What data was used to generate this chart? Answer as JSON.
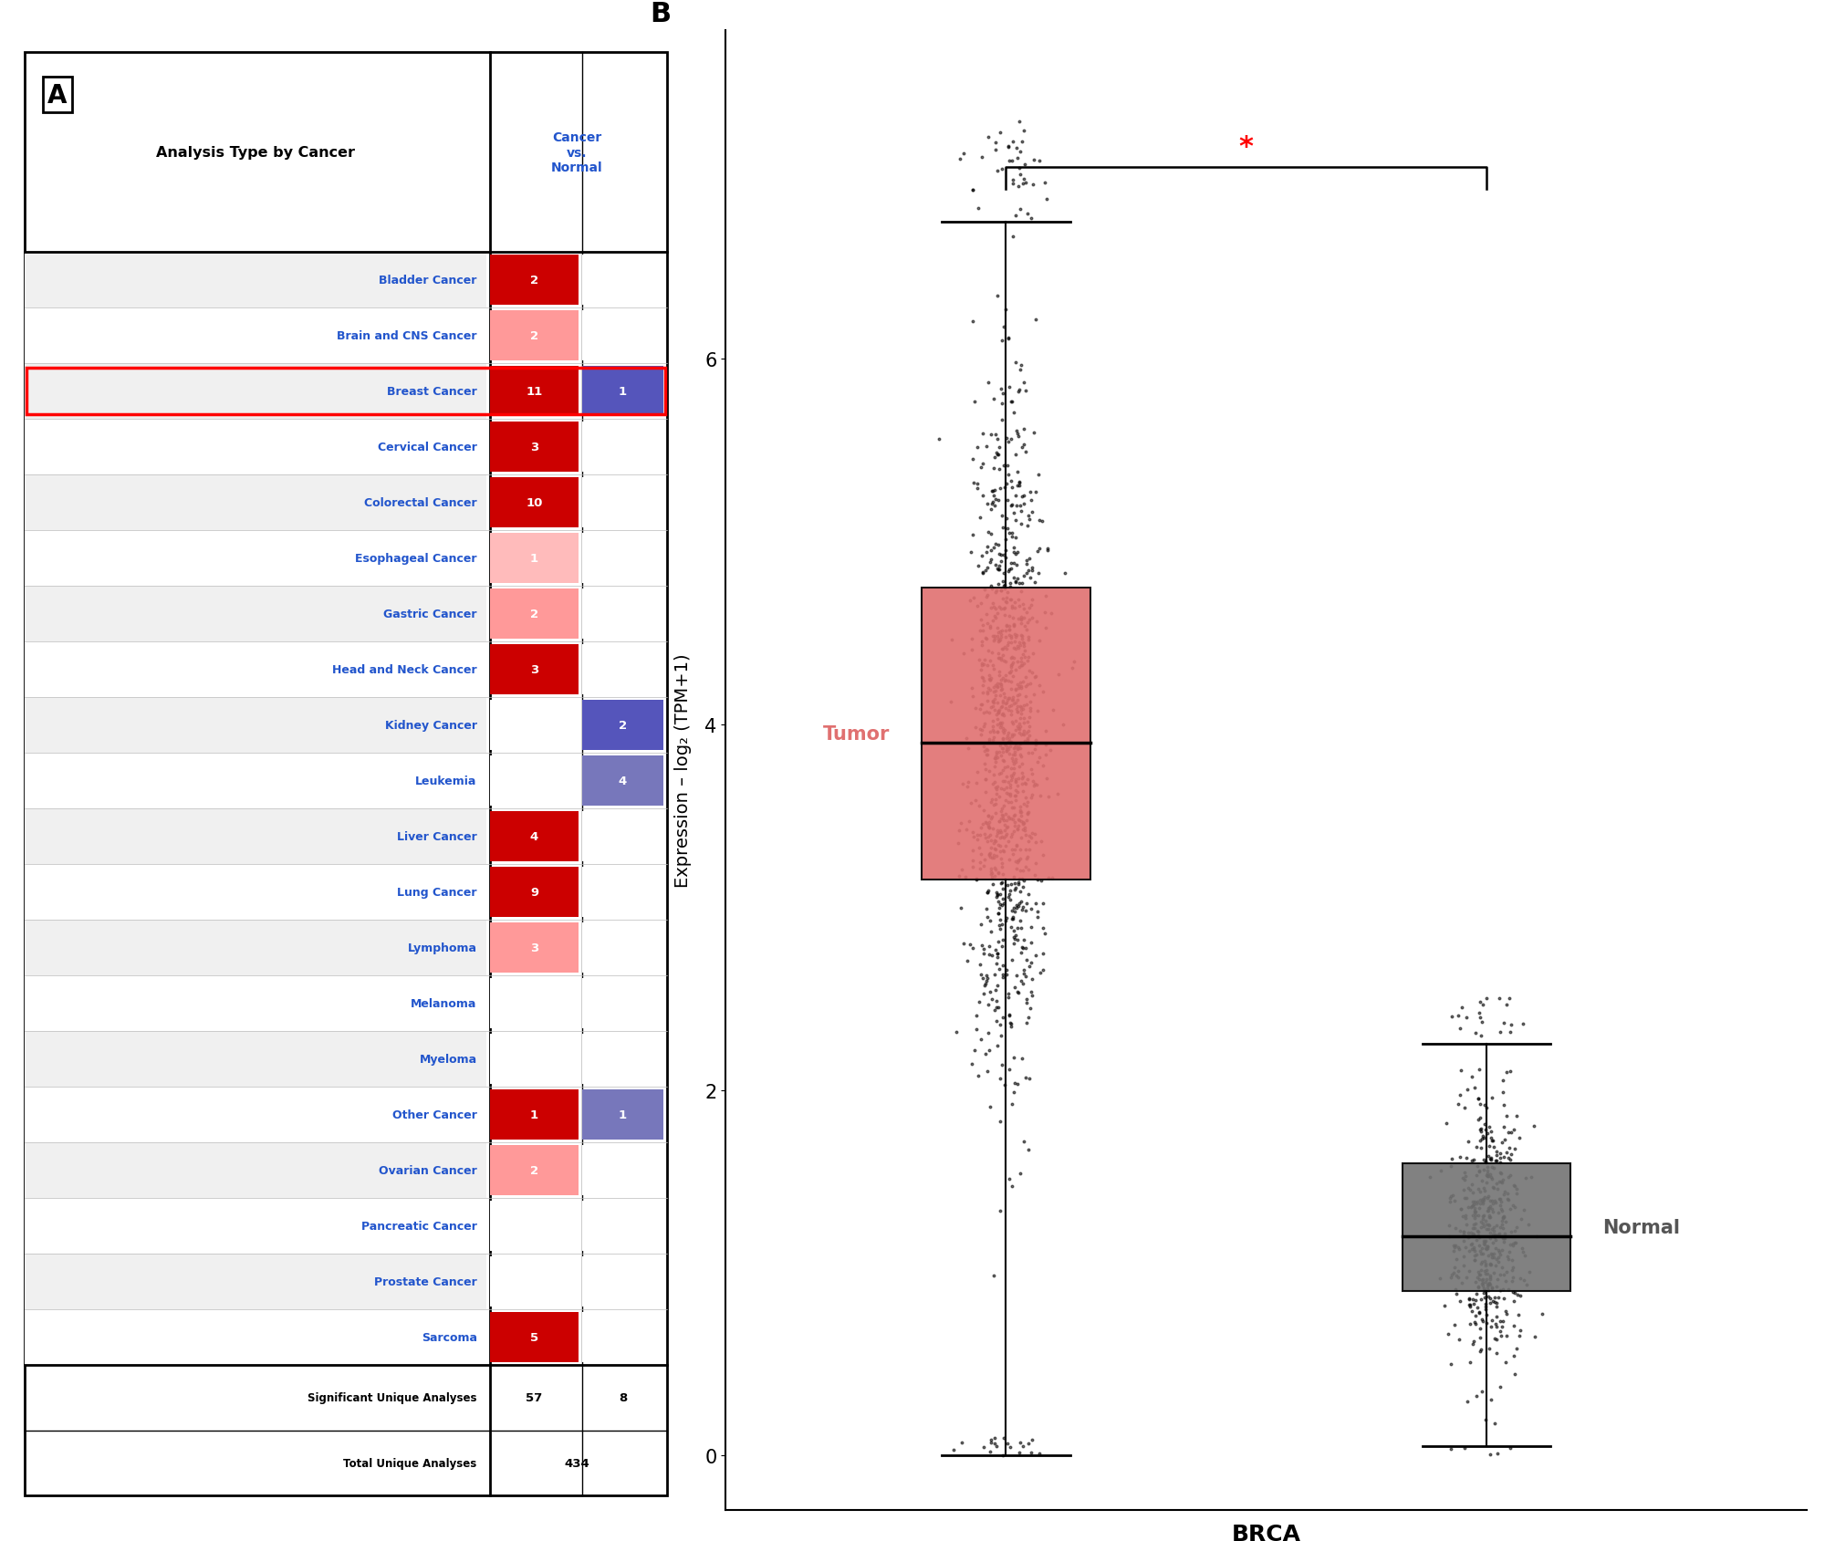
{
  "panel_a": {
    "title": "A",
    "col_header_left": "Analysis Type by Cancer",
    "col_header_right": "Cancer\nvs.\nNormal",
    "cancer_types": [
      "Bladder Cancer",
      "Brain and CNS Cancer",
      "Breast Cancer",
      "Cervical Cancer",
      "Colorectal Cancer",
      "Esophageal Cancer",
      "Gastric Cancer",
      "Head and Neck Cancer",
      "Kidney Cancer",
      "Leukemia",
      "Liver Cancer",
      "Lung Cancer",
      "Lymphoma",
      "Melanoma",
      "Myeloma",
      "Other Cancer",
      "Ovarian Cancer",
      "Pancreatic Cancer",
      "Prostate Cancer",
      "Sarcoma"
    ],
    "red_values": [
      2,
      2,
      11,
      3,
      10,
      1,
      2,
      3,
      null,
      null,
      4,
      9,
      3,
      null,
      null,
      1,
      2,
      null,
      null,
      5
    ],
    "blue_values": [
      null,
      null,
      1,
      null,
      null,
      null,
      null,
      null,
      2,
      4,
      null,
      null,
      null,
      null,
      null,
      1,
      null,
      null,
      null,
      null
    ],
    "highlighted_row": 2,
    "sig_unique_red": 57,
    "sig_unique_blue": 8,
    "total_unique": 434,
    "red_colors": [
      "#CC0000",
      "#FF9999",
      "#CC0000",
      "#CC0000",
      "#CC0000",
      "#FFBBBB",
      "#FF9999",
      "#CC0000",
      null,
      null,
      "#CC0000",
      "#CC0000",
      "#FF9999",
      null,
      null,
      "#CC0000",
      "#FF9999",
      null,
      null,
      "#CC0000"
    ],
    "blue_colors": [
      null,
      null,
      "#5555BB",
      null,
      null,
      null,
      null,
      null,
      "#5555BB",
      "#7777BB",
      null,
      null,
      null,
      null,
      null,
      "#7777BB",
      null,
      null,
      null,
      null
    ]
  },
  "panel_b": {
    "title": "B",
    "xlabel": "BRCA",
    "ylabel": "Expression – log₂ (TPM+1)",
    "tumor_label": "Tumor",
    "normal_label": "Normal",
    "tumor_color": "#E07070",
    "normal_color": "#737373",
    "tumor_box": {
      "median": 3.9,
      "q1": 3.15,
      "q3": 4.75,
      "whisker_low": 0.0,
      "whisker_high": 6.75
    },
    "normal_box": {
      "median": 1.2,
      "q1": 0.9,
      "q3": 1.6,
      "whisker_low": 0.05,
      "whisker_high": 2.25
    },
    "significance_marker": "*",
    "sig_color": "red",
    "yticks": [
      0,
      2,
      4,
      6
    ],
    "ylim": [
      -0.3,
      7.8
    ],
    "xlim": [
      0.3,
      3.0
    ]
  }
}
